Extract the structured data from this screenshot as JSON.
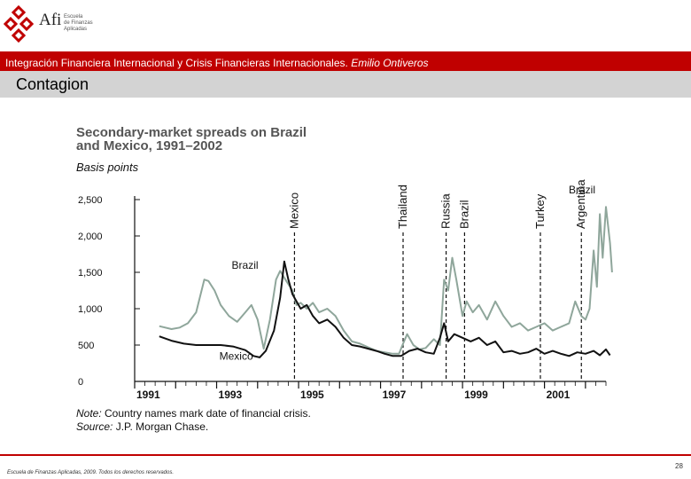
{
  "logo": {
    "brand": "Afi",
    "school_lines": [
      "Escuela",
      "de Finanzas",
      "Aplicadas"
    ],
    "mark_color": "#c00000"
  },
  "header": {
    "banner_text": "Integración Financiera Internacional y Crisis Financieras Internacionales.",
    "banner_author": "Emilio Ontiveros",
    "banner_color": "#c00000",
    "title": "Contagion"
  },
  "footer": {
    "copyright": "Escuela de Finanzas Aplicadas, 2009. Todos los derechos reservados.",
    "page_number": "28"
  },
  "chart_data": {
    "type": "line",
    "title": "Secondary-market spreads on Brazil and Mexico, 1991–2002",
    "title_lines": [
      "Secondary-market spreads on Brazil",
      "and Mexico, 1991–2002"
    ],
    "ylabel": "Basis points",
    "xlim": [
      1991,
      2002.5
    ],
    "ylim": [
      0,
      2500
    ],
    "yticks": [
      0,
      500,
      1000,
      1500,
      2000,
      2500
    ],
    "ytick_labels": [
      "0",
      "500",
      "1,000",
      "1,500",
      "2,000",
      "2,500"
    ],
    "xticks": [
      1991,
      1993,
      1995,
      1997,
      1999,
      2001
    ],
    "grid": false,
    "series": [
      {
        "name": "Brazil",
        "end_label": "Brazil",
        "color": "#8fa69b",
        "x": [
          1991.6,
          1991.9,
          1992.1,
          1992.3,
          1992.5,
          1992.7,
          1992.8,
          1992.95,
          1993.1,
          1993.3,
          1993.5,
          1993.7,
          1993.85,
          1994.0,
          1994.15,
          1994.3,
          1994.45,
          1994.55,
          1994.7,
          1994.85,
          1994.95,
          1995.05,
          1995.2,
          1995.35,
          1995.5,
          1995.7,
          1995.9,
          1996.1,
          1996.3,
          1996.5,
          1996.7,
          1996.9,
          1997.1,
          1997.3,
          1997.45,
          1997.55,
          1997.65,
          1997.8,
          1997.95,
          1998.1,
          1998.3,
          1998.45,
          1998.55,
          1998.65,
          1998.75,
          1998.85,
          1999.0,
          1999.1,
          1999.25,
          1999.4,
          1999.6,
          1999.8,
          2000.0,
          2000.2,
          2000.4,
          2000.6,
          2000.8,
          2001.0,
          2001.2,
          2001.4,
          2001.6,
          2001.75,
          2001.9,
          2002.0,
          2002.1,
          2002.2,
          2002.28,
          2002.35,
          2002.42,
          2002.5,
          2002.6,
          2002.65
        ],
        "values": [
          760,
          720,
          740,
          800,
          950,
          1400,
          1380,
          1250,
          1050,
          900,
          820,
          950,
          1050,
          850,
          450,
          850,
          1400,
          1520,
          1380,
          1250,
          1050,
          1080,
          1000,
          1080,
          950,
          1000,
          900,
          700,
          550,
          520,
          470,
          420,
          400,
          380,
          380,
          520,
          650,
          500,
          440,
          460,
          580,
          500,
          1400,
          1250,
          1700,
          1400,
          900,
          1100,
          950,
          1050,
          850,
          1100,
          900,
          750,
          800,
          700,
          750,
          800,
          700,
          750,
          800,
          1100,
          900,
          850,
          1000,
          1800,
          1300,
          2300,
          1700,
          2400,
          1900,
          1500
        ]
      },
      {
        "name": "Mexico",
        "color": "#111111",
        "x": [
          1991.6,
          1991.9,
          1992.2,
          1992.5,
          1992.8,
          1993.1,
          1993.4,
          1993.7,
          1993.9,
          1994.05,
          1994.2,
          1994.4,
          1994.55,
          1994.65,
          1994.75,
          1994.85,
          1994.95,
          1995.05,
          1995.2,
          1995.35,
          1995.5,
          1995.7,
          1995.9,
          1996.1,
          1996.3,
          1996.5,
          1996.7,
          1996.9,
          1997.1,
          1997.3,
          1997.5,
          1997.7,
          1997.9,
          1998.1,
          1998.3,
          1998.45,
          1998.55,
          1998.65,
          1998.8,
          1999.0,
          1999.2,
          1999.4,
          1999.6,
          1999.8,
          2000.0,
          2000.2,
          2000.4,
          2000.6,
          2000.8,
          2001.0,
          2001.2,
          2001.4,
          2001.6,
          2001.8,
          2002.0,
          2002.2,
          2002.35,
          2002.5,
          2002.6
        ],
        "values": [
          620,
          560,
          520,
          500,
          500,
          500,
          480,
          430,
          350,
          330,
          420,
          700,
          1150,
          1650,
          1400,
          1200,
          1100,
          1000,
          1050,
          900,
          800,
          850,
          750,
          600,
          500,
          480,
          450,
          420,
          380,
          350,
          350,
          420,
          450,
          400,
          380,
          600,
          800,
          550,
          650,
          600,
          550,
          600,
          500,
          550,
          400,
          420,
          380,
          400,
          450,
          380,
          420,
          380,
          350,
          400,
          380,
          420,
          360,
          440,
          360
        ]
      }
    ],
    "crisis_markers": [
      {
        "label": "Mexico",
        "x": 1994.9
      },
      {
        "label": "Thailand",
        "x": 1997.55
      },
      {
        "label": "Russia",
        "x": 1998.6
      },
      {
        "label": "Brazil",
        "x": 1999.05
      },
      {
        "label": "Turkey",
        "x": 2000.9
      },
      {
        "label": "Argentina",
        "x": 2001.9
      }
    ],
    "annotations": [
      {
        "label": "Brazil",
        "x": 1993.8,
        "y": 1600
      },
      {
        "label": "Mexico",
        "x": 1993.5,
        "y": 350
      }
    ],
    "note_prefix": "Note:",
    "note_text": "Country names mark date of financial crisis.",
    "source_prefix": "Source:",
    "source_text": "J.P. Morgan Chase."
  }
}
